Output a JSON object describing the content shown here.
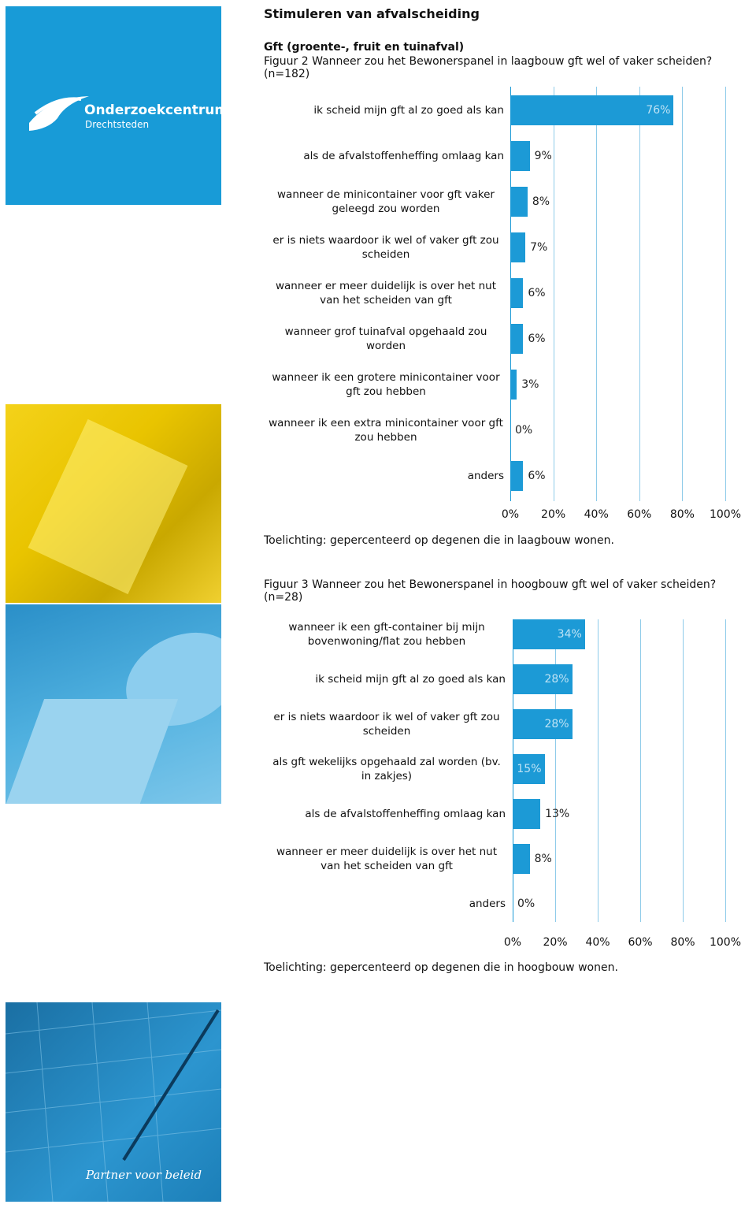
{
  "header": {
    "title": "Stimuleren van afvalscheiding",
    "section": "Gft (groente-, fruit en tuinafval)"
  },
  "sidebar": {
    "logo_name": "Onderzoekcentrum",
    "logo_sub": "Drechtsteden",
    "tagline": "Partner voor beleid"
  },
  "chart_data": [
    {
      "type": "bar",
      "orientation": "horizontal",
      "title": "Figuur 2 Wanneer zou het Bewonerspanel in laagbouw gft wel of vaker scheiden? (n=182)",
      "categories": [
        "ik scheid mijn gft al zo goed als kan",
        "als de afvalstoffenheffing omlaag kan",
        "wanneer de minicontainer voor gft vaker geleegd zou worden",
        "er is niets waardoor ik wel of vaker gft zou scheiden",
        "wanneer er meer duidelijk is over het nut van het scheiden van gft",
        "wanneer grof tuinafval opgehaald zou worden",
        "wanneer ik een grotere minicontainer voor gft zou hebben",
        "wanneer ik een extra minicontainer voor gft zou hebben",
        "anders"
      ],
      "values": [
        76,
        9,
        8,
        7,
        6,
        6,
        3,
        0,
        6
      ],
      "value_labels": [
        "76%",
        "9%",
        "8%",
        "7%",
        "6%",
        "6%",
        "3%",
        "0%",
        "6%"
      ],
      "color": "#1c9ad6",
      "xlim": [
        0,
        100
      ],
      "xticks": [
        {
          "value": 0,
          "label": "0%"
        },
        {
          "value": 20,
          "label": "20%"
        },
        {
          "value": 40,
          "label": "40%"
        },
        {
          "value": 60,
          "label": "60%"
        },
        {
          "value": 80,
          "label": "80%"
        },
        {
          "value": 100,
          "label": "100%"
        }
      ],
      "grid": true,
      "note": "Toelichting: gepercenteerd op degenen die in laagbouw wonen."
    },
    {
      "type": "bar",
      "orientation": "horizontal",
      "title": "Figuur 3 Wanneer zou het Bewonerspanel in hoogbouw gft wel of vaker scheiden? (n=28)",
      "categories": [
        "wanneer ik een gft-container bij mijn bovenwoning/flat zou hebben",
        "ik scheid mijn gft al zo goed als kan",
        "er is niets waardoor ik wel of vaker gft zou scheiden",
        "als gft wekelijks opgehaald zal worden (bv. in zakjes)",
        "als de afvalstoffenheffing omlaag kan",
        "wanneer er meer duidelijk is over het nut van het scheiden van gft",
        "anders"
      ],
      "values": [
        34,
        28,
        28,
        15,
        13,
        8,
        0
      ],
      "value_labels": [
        "34%",
        "28%",
        "28%",
        "15%",
        "13%",
        "8%",
        "0%"
      ],
      "color": "#1c9ad6",
      "xlim": [
        0,
        100
      ],
      "xticks": [
        {
          "value": 0,
          "label": "0%"
        },
        {
          "value": 20,
          "label": "20%"
        },
        {
          "value": 40,
          "label": "40%"
        },
        {
          "value": 60,
          "label": "60%"
        },
        {
          "value": 80,
          "label": "80%"
        },
        {
          "value": 100,
          "label": "100%"
        }
      ],
      "grid": true,
      "note": "Toelichting: gepercenteerd op degenen die in hoogbouw wonen."
    }
  ]
}
